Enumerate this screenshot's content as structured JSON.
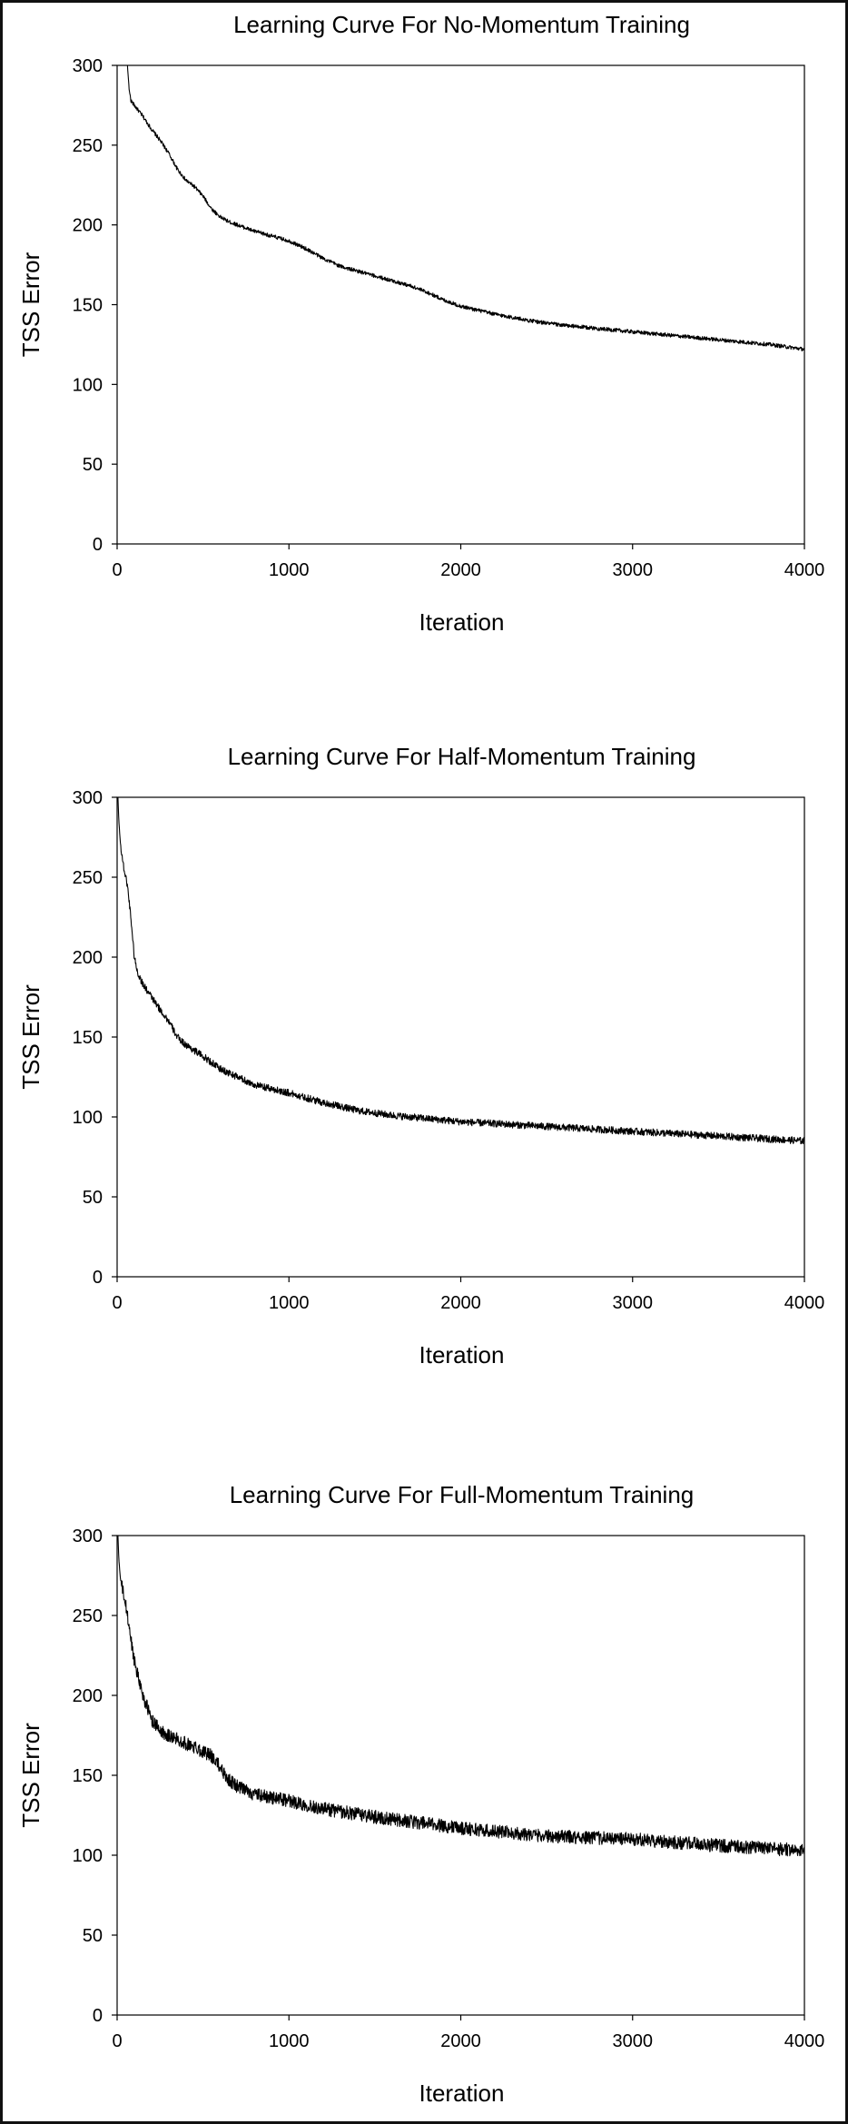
{
  "chart_data": [
    {
      "type": "line",
      "title": "Learning Curve For No-Momentum Training",
      "xlabel": "Iteration",
      "ylabel": "TSS Error",
      "xlim": [
        0,
        4000
      ],
      "ylim": [
        0,
        300
      ],
      "xticks": [
        0,
        1000,
        2000,
        3000,
        4000
      ],
      "yticks": [
        0,
        50,
        100,
        150,
        200,
        250,
        300
      ],
      "grid": false,
      "legend": "none",
      "line_color": "#000000",
      "noise": 1.2,
      "series": [
        {
          "x": [
            60,
            70,
            80,
            100,
            150,
            200,
            250,
            300,
            350,
            400,
            450,
            500,
            550,
            600,
            650,
            700,
            800,
            900,
            1000,
            1100,
            1200,
            1300,
            1400,
            1500,
            1600,
            1700,
            1800,
            1900,
            2000,
            2200,
            2400,
            2600,
            2800,
            3000,
            3200,
            3400,
            3600,
            3800,
            4000
          ],
          "values": [
            300,
            285,
            278,
            275,
            268,
            260,
            253,
            245,
            235,
            228,
            224,
            218,
            210,
            205,
            202,
            200,
            196,
            193,
            190,
            185,
            179,
            174,
            171,
            168,
            165,
            162,
            158,
            153,
            149,
            144,
            140,
            137,
            135,
            133,
            131,
            129,
            127,
            125,
            122
          ]
        }
      ]
    },
    {
      "type": "line",
      "title": "Learning Curve For Half-Momentum Training",
      "xlabel": "Iteration",
      "ylabel": "TSS Error",
      "xlim": [
        0,
        4000
      ],
      "ylim": [
        0,
        300
      ],
      "xticks": [
        0,
        1000,
        2000,
        3000,
        4000
      ],
      "yticks": [
        0,
        50,
        100,
        150,
        200,
        250,
        300
      ],
      "grid": false,
      "legend": "none",
      "line_color": "#000000",
      "noise": 2.2,
      "series": [
        {
          "x": [
            5,
            10,
            20,
            40,
            60,
            80,
            100,
            120,
            150,
            200,
            250,
            300,
            350,
            400,
            500,
            600,
            700,
            800,
            1000,
            1200,
            1400,
            1600,
            1800,
            2000,
            2500,
            3000,
            3500,
            4000
          ],
          "values": [
            300,
            285,
            270,
            255,
            245,
            225,
            200,
            190,
            183,
            175,
            167,
            160,
            150,
            145,
            138,
            130,
            125,
            120,
            115,
            109,
            104,
            101,
            99,
            97,
            94,
            91,
            88,
            85
          ]
        }
      ]
    },
    {
      "type": "line",
      "title": "Learning Curve For Full-Momentum Training",
      "xlabel": "Iteration",
      "ylabel": "TSS Error",
      "xlim": [
        0,
        4000
      ],
      "ylim": [
        0,
        300
      ],
      "xticks": [
        0,
        1000,
        2000,
        3000,
        4000
      ],
      "yticks": [
        0,
        50,
        100,
        150,
        200,
        250,
        300
      ],
      "grid": false,
      "legend": "none",
      "line_color": "#000000",
      "noise": 4.2,
      "series": [
        {
          "x": [
            5,
            10,
            20,
            40,
            60,
            80,
            100,
            150,
            200,
            250,
            300,
            400,
            500,
            550,
            600,
            650,
            700,
            800,
            1000,
            1200,
            1500,
            2000,
            2500,
            3000,
            3500,
            4000
          ],
          "values": [
            300,
            285,
            272,
            262,
            250,
            235,
            222,
            200,
            185,
            178,
            175,
            170,
            165,
            162,
            155,
            147,
            143,
            138,
            134,
            129,
            124,
            117,
            112,
            110,
            106,
            103
          ]
        }
      ]
    }
  ]
}
